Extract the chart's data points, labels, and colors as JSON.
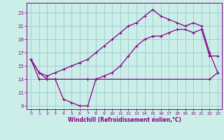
{
  "xlabel": "Windchill (Refroidissement éolien,°C)",
  "background_color": "#cceee8",
  "grid_color": "#99cccc",
  "line_color": "#880088",
  "xlim": [
    -0.5,
    23.5
  ],
  "ylim": [
    8.5,
    24.5
  ],
  "xticks": [
    0,
    1,
    2,
    3,
    4,
    5,
    6,
    7,
    8,
    9,
    10,
    11,
    12,
    13,
    14,
    15,
    16,
    17,
    18,
    19,
    20,
    21,
    22,
    23
  ],
  "yticks": [
    9,
    11,
    13,
    15,
    17,
    19,
    21,
    23
  ],
  "line1_x": [
    0,
    1,
    2,
    3,
    4,
    5,
    6,
    7,
    8,
    9,
    10,
    11,
    12,
    13,
    14,
    15,
    16,
    17,
    18,
    19,
    20,
    21,
    22,
    23
  ],
  "line1_y": [
    16,
    14,
    13,
    13,
    10,
    9.5,
    9,
    9,
    13,
    13.5,
    14,
    15,
    16.5,
    18,
    19,
    19.5,
    19.5,
    20,
    20.5,
    20.5,
    20,
    20.5,
    16.5,
    16.5
  ],
  "line2_x": [
    0,
    1,
    2,
    3,
    7,
    8,
    22,
    23
  ],
  "line2_y": [
    16,
    13,
    13,
    13,
    13,
    13,
    13,
    14
  ],
  "line3_x": [
    0,
    1,
    2,
    3,
    4,
    5,
    6,
    7,
    8,
    9,
    10,
    11,
    12,
    13,
    14,
    15,
    16,
    17,
    18,
    19,
    20,
    21,
    22,
    23
  ],
  "line3_y": [
    16,
    14,
    13.5,
    14,
    14.5,
    15,
    15.5,
    16,
    17,
    18,
    19,
    20,
    21,
    21.5,
    22.5,
    23.5,
    22.5,
    22,
    21.5,
    21,
    21.5,
    21,
    17,
    14
  ]
}
